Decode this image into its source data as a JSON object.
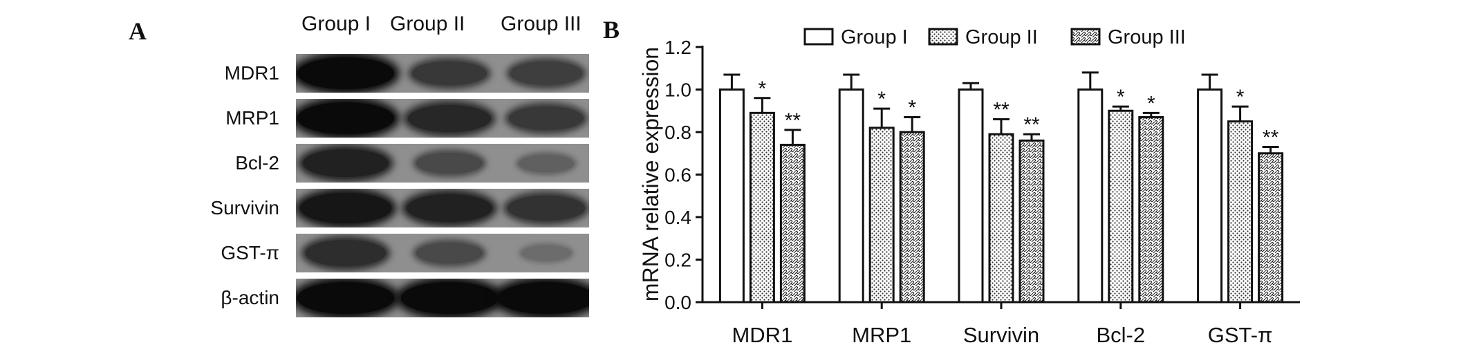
{
  "panel_a": {
    "letter": "A",
    "groups": [
      "Group I",
      "Group II",
      "Group III"
    ],
    "rows": [
      {
        "label": "MDR1",
        "intensity": [
          1.0,
          0.6,
          0.55
        ]
      },
      {
        "label": "MRP1",
        "intensity": [
          1.0,
          0.75,
          0.6
        ]
      },
      {
        "label": "Bcl-2",
        "intensity": [
          0.8,
          0.45,
          0.25
        ]
      },
      {
        "label": "Survivin",
        "intensity": [
          0.9,
          0.8,
          0.65
        ]
      },
      {
        "label": "GST-π",
        "intensity": [
          0.7,
          0.45,
          0.15
        ]
      },
      {
        "label": "β-actin",
        "intensity": [
          1.0,
          1.0,
          1.0
        ]
      }
    ]
  },
  "panel_b": {
    "letter": "B"
  },
  "chart_data": {
    "type": "bar",
    "categories": [
      "MDR1",
      "MRP1",
      "Survivin",
      "Bcl-2",
      "GST-π"
    ],
    "series": [
      {
        "name": "Group I",
        "pattern": "open",
        "values": [
          1.0,
          1.0,
          1.0,
          1.0,
          1.0
        ],
        "errors": [
          0.07,
          0.07,
          0.03,
          0.08,
          0.07
        ],
        "annotations": [
          "",
          "",
          "",
          "",
          ""
        ]
      },
      {
        "name": "Group II",
        "pattern": "dotted",
        "values": [
          0.89,
          0.82,
          0.79,
          0.9,
          0.85
        ],
        "errors": [
          0.07,
          0.09,
          0.07,
          0.02,
          0.07
        ],
        "annotations": [
          "*",
          "*",
          "**",
          "*",
          "*"
        ]
      },
      {
        "name": "Group III",
        "pattern": "checkered",
        "values": [
          0.74,
          0.8,
          0.76,
          0.87,
          0.7
        ],
        "errors": [
          0.07,
          0.07,
          0.03,
          0.02,
          0.03
        ],
        "annotations": [
          "**",
          "*",
          "**",
          "*",
          "**"
        ]
      }
    ],
    "ylabel": "mRNA relative expression",
    "xlabel": "",
    "ylim": [
      0,
      1.2
    ],
    "yticks": [
      "0.0",
      "0.2",
      "0.4",
      "0.6",
      "0.8",
      "1.0",
      "1.2"
    ],
    "grid": false,
    "legend_position": "top"
  }
}
